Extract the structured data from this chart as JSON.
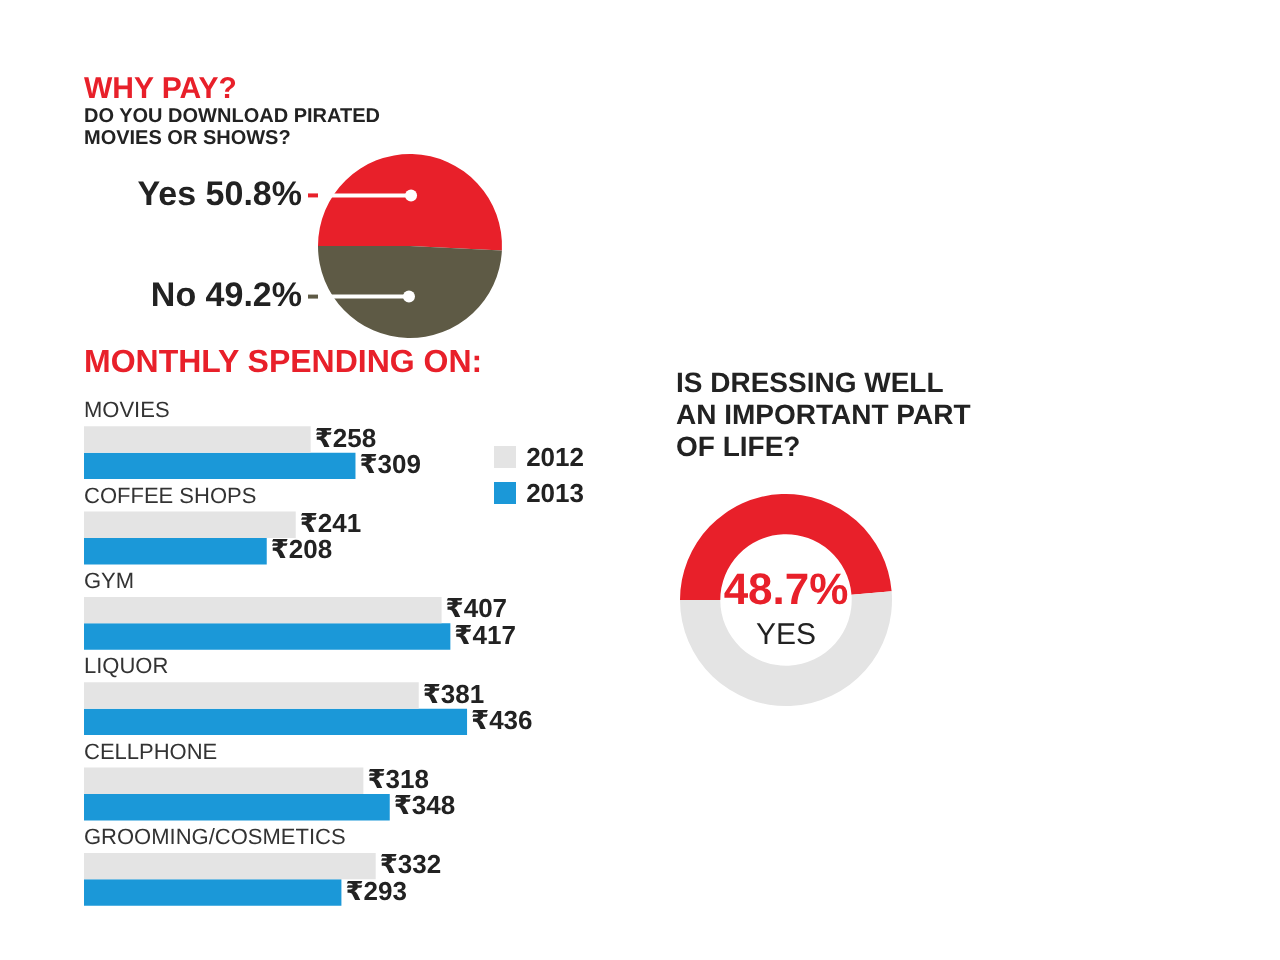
{
  "chart_data": [
    {
      "type": "pie",
      "title": "WHY PAY?",
      "subtitle": "DO YOU DOWNLOAD PIRATED MOVIES OR SHOWS?",
      "categories": [
        "Yes",
        "No"
      ],
      "values": [
        50.8,
        49.2
      ],
      "colors": [
        "#e8202a",
        "#5e5a45"
      ],
      "value_labels": [
        "50.8%",
        "49.2%"
      ],
      "legend": false
    },
    {
      "type": "bar",
      "orientation": "horizontal",
      "title": "MONTHLY SPENDING ON:",
      "categories": [
        "MOVIES",
        "COFFEE SHOPS",
        "GYM",
        "LIQUOR",
        "CELLPHONE",
        "GROOMING/COSMETICS"
      ],
      "legend": "top right",
      "series": [
        {
          "name": "2012",
          "color": "#e4e4e4",
          "values": [
            258,
            241,
            407,
            381,
            318,
            332
          ],
          "value_labels": [
            "₹258",
            "₹241",
            "₹407",
            "₹381",
            "₹318",
            "₹332"
          ]
        },
        {
          "name": "2013",
          "color": "#1b98d8",
          "values": [
            309,
            208,
            417,
            436,
            348,
            293
          ],
          "value_labels": [
            "₹309",
            "₹208",
            "₹417",
            "₹436",
            "₹348",
            "₹293"
          ]
        }
      ]
    },
    {
      "type": "donut",
      "title": "IS DRESSING WELL AN IMPORTANT PART OF LIFE?",
      "categories": [
        "YES",
        null
      ],
      "values": [
        48.7,
        51.3
      ],
      "colors": [
        "#e8202a",
        "#e4e4e4"
      ],
      "value_labels": [
        "48.7%",
        null
      ],
      "legend": false
    }
  ]
}
